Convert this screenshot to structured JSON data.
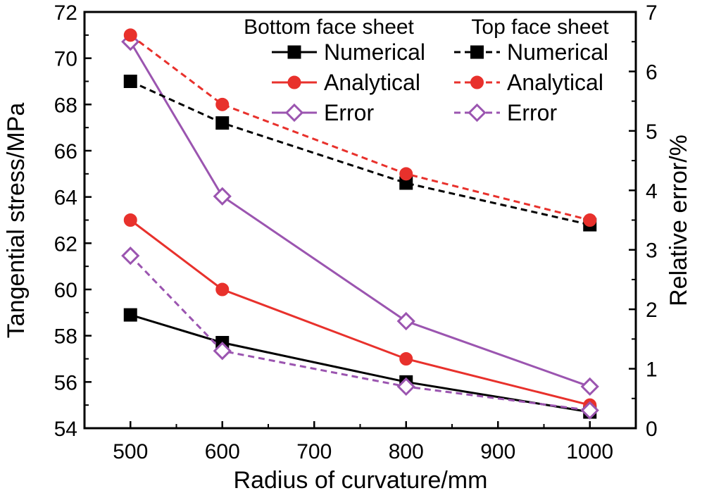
{
  "chart_data": {
    "type": "line",
    "xlabel": "Radius of curvature/mm",
    "ylabel": "Tangential stress/MPa",
    "y2label": "Relative error/%",
    "xlim": [
      450,
      1050
    ],
    "ylim": [
      54,
      72
    ],
    "y2lim": [
      0,
      7
    ],
    "xticks": [
      500,
      600,
      700,
      800,
      900,
      1000
    ],
    "yticks": [
      54,
      56,
      58,
      60,
      62,
      64,
      66,
      68,
      70,
      72
    ],
    "y2ticks": [
      0,
      1,
      2,
      3,
      4,
      5,
      6,
      7
    ],
    "legend": {
      "bottom_header": "Bottom face sheet",
      "top_header": "Top face sheet"
    },
    "series": [
      {
        "name": "Numerical",
        "group": "Bottom face sheet",
        "axis": "left",
        "color": "#000000",
        "dash": "solid",
        "marker": "square",
        "x": [
          500,
          600,
          800,
          1000
        ],
        "values": [
          58.9,
          57.7,
          56.0,
          54.7
        ]
      },
      {
        "name": "Analytical",
        "group": "Bottom face sheet",
        "axis": "left",
        "color": "#e8312c",
        "dash": "solid",
        "marker": "circle",
        "x": [
          500,
          600,
          800,
          1000
        ],
        "values": [
          63.0,
          60.0,
          57.0,
          55.0
        ]
      },
      {
        "name": "Error",
        "group": "Bottom face sheet",
        "axis": "right",
        "color": "#9b55b0",
        "dash": "solid",
        "marker": "diamond",
        "x": [
          500,
          600,
          800,
          1000
        ],
        "values": [
          6.5,
          3.9,
          1.8,
          0.7
        ]
      },
      {
        "name": "Numerical",
        "group": "Top face sheet",
        "axis": "left",
        "color": "#000000",
        "dash": "dashed",
        "marker": "square",
        "x": [
          500,
          600,
          800,
          1000
        ],
        "values": [
          69.0,
          67.2,
          64.6,
          62.8
        ]
      },
      {
        "name": "Analytical",
        "group": "Top face sheet",
        "axis": "left",
        "color": "#e8312c",
        "dash": "dashed",
        "marker": "circle",
        "x": [
          500,
          600,
          800,
          1000
        ],
        "values": [
          71.0,
          68.0,
          65.0,
          63.0
        ]
      },
      {
        "name": "Error",
        "group": "Top face sheet",
        "axis": "right",
        "color": "#9b55b0",
        "dash": "dashed",
        "marker": "diamond",
        "x": [
          500,
          600,
          800,
          1000
        ],
        "values": [
          2.9,
          1.3,
          0.7,
          0.3
        ]
      }
    ]
  }
}
